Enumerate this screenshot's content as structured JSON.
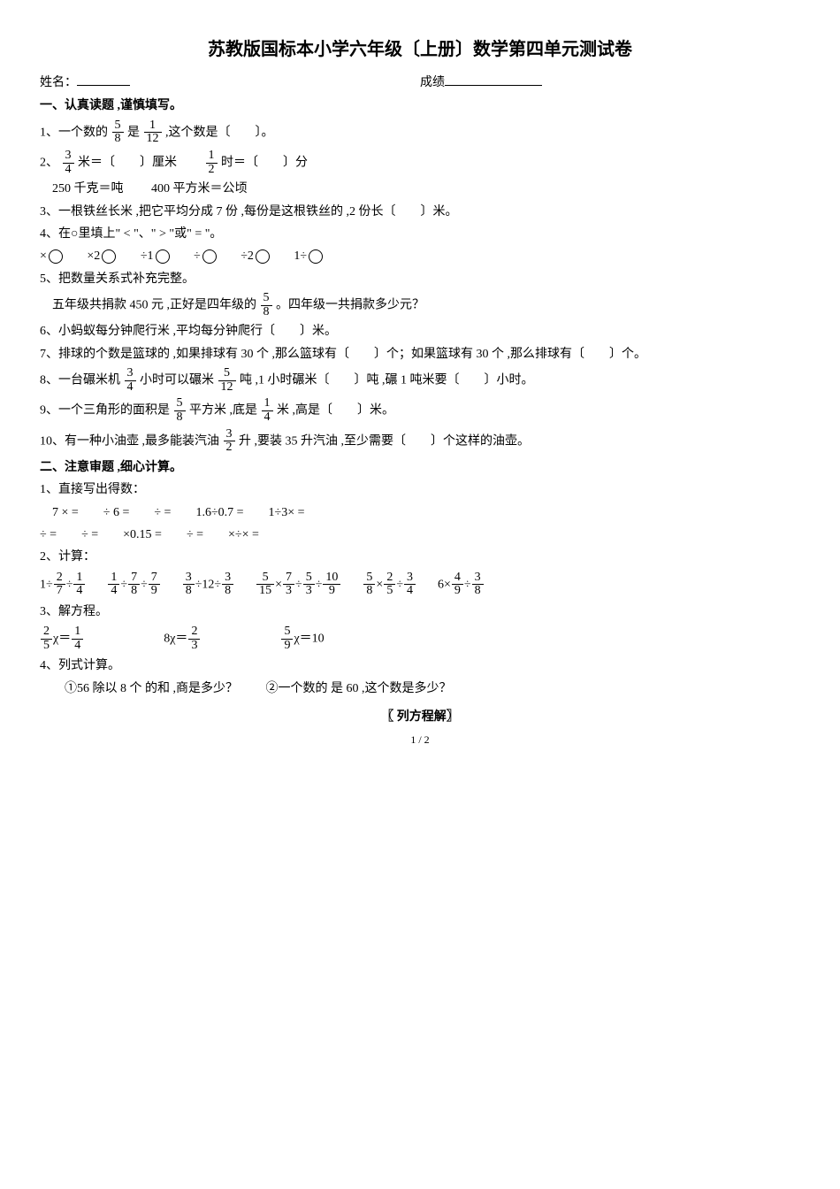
{
  "title": "苏教版国标本小学六年级〔上册〕数学第四单元测试卷",
  "name_label": "姓名：",
  "score_label": "成绩",
  "section1": {
    "head": "一、认真读题 ,谨慎填写。",
    "q1a": "1、一个数的",
    "q1b": "是",
    "q1c": " ,这个数是〔　　〕。",
    "q2a": "2、",
    "q2b": "米＝〔　　〕厘米",
    "q2c": "时＝〔　　〕分",
    "q2d": "250 千克＝吨",
    "q2e": "400 平方米＝公顷",
    "q3": "3、一根铁丝长米 ,把它平均分成 7 份 ,每份是这根铁丝的 ,2 份长〔　　〕米。",
    "q4": "4、在○里填上\" < \"、\" > \"或\" = \"。",
    "q4row": [
      "×",
      "×2",
      "÷1",
      "÷",
      "÷2",
      "1÷"
    ],
    "q5": "5、把数量关系式补充完整。",
    "q5a": "五年级共捐款 450 元 ,正好是四年级的",
    "q5b": "。四年级一共捐款多少元？",
    "q6": "6、小蚂蚁每分钟爬行米 ,平均每分钟爬行〔　　〕米。",
    "q7": "7、排球的个数是篮球的 ,如果排球有 30 个 ,那么篮球有〔　　〕个；如果篮球有 30 个 ,那么排球有〔　　〕个。",
    "q8a": "8、一台碾米机",
    "q8b": "小时可以碾米",
    "q8c": "吨 ,1 小时碾米〔　　〕吨 ,碾 1 吨米要〔　　〕小时。",
    "q9a": "9、一个三角形的面积是",
    "q9b": "平方米 ,底是",
    "q9c": "米 ,高是〔　　〕米。",
    "q10a": "10、有一种小油壶 ,最多能装汽油",
    "q10b": "升 ,要装 35 升汽油 ,至少需要〔　　〕个这样的油壶。"
  },
  "section2": {
    "head": "二、注意审题 ,细心计算。",
    "q1": "1、直接写出得数：",
    "r1": "　7 × =　　÷ 6 =　　÷ =　　1.6÷0.7 =　　1÷3× =",
    "r2": "÷ =　　÷ =　　×0.15 =　　÷ =　　×÷× =",
    "q2": "2、计算：",
    "q3": "3、解方程。",
    "q4": "4、列式计算。",
    "q4a": "①56 除以 8 个 的和 ,商是多少？",
    "q4b": "②一个数的 是 60 ,这个数是多少？"
  },
  "fracs": {
    "f5_8": {
      "n": "5",
      "d": "8"
    },
    "f1_12": {
      "n": "1",
      "d": "12"
    },
    "f3_4": {
      "n": "3",
      "d": "4"
    },
    "f1_2": {
      "n": "1",
      "d": "2"
    },
    "f5_12": {
      "n": "5",
      "d": "12"
    },
    "f1_4": {
      "n": "1",
      "d": "4"
    },
    "f3_2": {
      "n": "3",
      "d": "2"
    },
    "f2_7": {
      "n": "2",
      "d": "7"
    },
    "f7_8": {
      "n": "7",
      "d": "8"
    },
    "f7_9": {
      "n": "7",
      "d": "9"
    },
    "f3_8": {
      "n": "3",
      "d": "8"
    },
    "f5_15": {
      "n": "5",
      "d": "15"
    },
    "f7_3": {
      "n": "7",
      "d": "3"
    },
    "f5_3": {
      "n": "5",
      "d": "3"
    },
    "f10_9": {
      "n": "10",
      "d": "9"
    },
    "f2_5": {
      "n": "2",
      "d": "5"
    },
    "f4_9": {
      "n": "4",
      "d": "9"
    },
    "f2_3": {
      "n": "2",
      "d": "3"
    },
    "f5_9": {
      "n": "5",
      "d": "9"
    }
  },
  "footer": {
    "method": "〖 列方程解〗",
    "page": "1 / 2"
  }
}
